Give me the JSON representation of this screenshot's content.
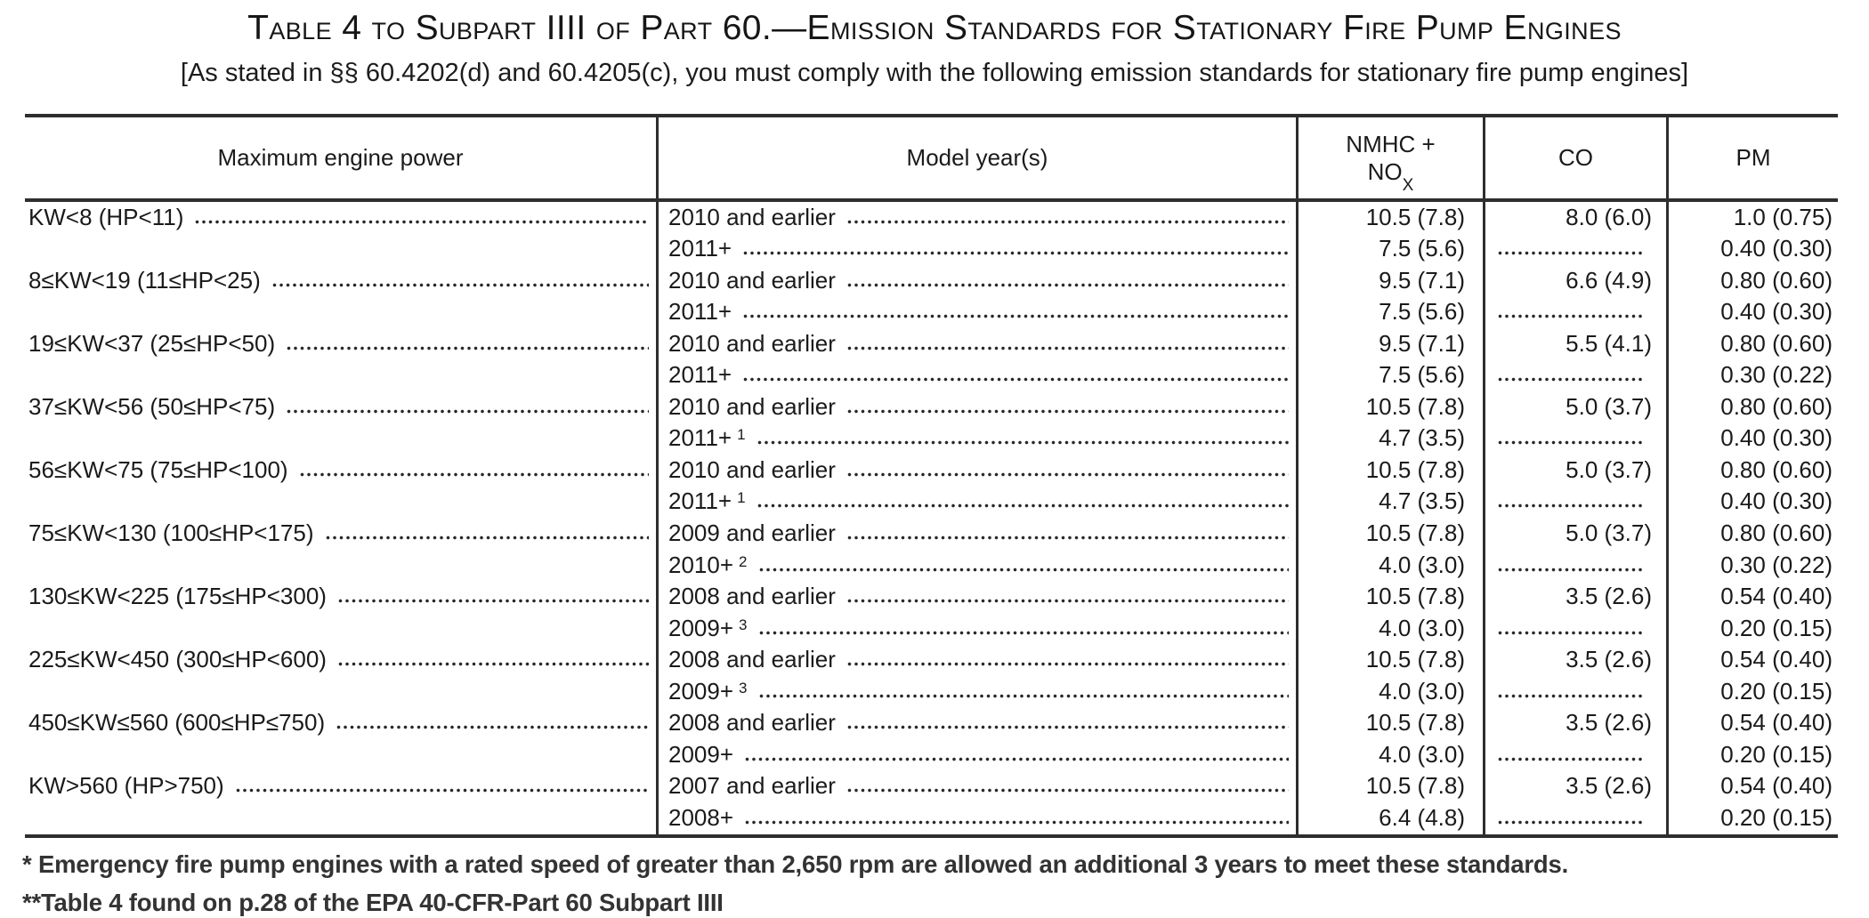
{
  "title": "Table 4 to Subpart IIII of Part 60.—Emission Standards for Stationary Fire Pump Engines",
  "subtitle": "[As stated in §§ 60.4202(d) and 60.4205(c), you must comply with the following emission standards for stationary fire pump engines]",
  "header": {
    "power": "Maximum engine power",
    "model_year": "Model year(s)",
    "nmhc_line1": "NMHC +",
    "nmhc_base": "NO",
    "nmhc_sub": "X",
    "co": "CO",
    "pm": "PM"
  },
  "rows": [
    {
      "power": "KW<8 (HP<11)",
      "entries": [
        {
          "year": "2010 and earlier",
          "sup": "",
          "nmhc": "10.5 (7.8)",
          "co": "8.0 (6.0)",
          "pm": "1.0 (0.75)"
        },
        {
          "year": "2011+",
          "sup": "",
          "nmhc": "7.5 (5.6)",
          "co": "",
          "pm": "0.40 (0.30)"
        }
      ]
    },
    {
      "power": "8≤KW<19 (11≤HP<25)",
      "entries": [
        {
          "year": "2010 and earlier",
          "sup": "",
          "nmhc": "9.5 (7.1)",
          "co": "6.6 (4.9)",
          "pm": "0.80 (0.60)"
        },
        {
          "year": "2011+",
          "sup": "",
          "nmhc": "7.5 (5.6)",
          "co": "",
          "pm": "0.40 (0.30)"
        }
      ]
    },
    {
      "power": "19≤KW<37 (25≤HP<50)",
      "entries": [
        {
          "year": "2010 and earlier",
          "sup": "",
          "nmhc": "9.5 (7.1)",
          "co": "5.5 (4.1)",
          "pm": "0.80 (0.60)"
        },
        {
          "year": "2011+",
          "sup": "",
          "nmhc": "7.5 (5.6)",
          "co": "",
          "pm": "0.30 (0.22)"
        }
      ]
    },
    {
      "power": "37≤KW<56 (50≤HP<75)",
      "entries": [
        {
          "year": "2010 and earlier",
          "sup": "",
          "nmhc": "10.5 (7.8)",
          "co": "5.0 (3.7)",
          "pm": "0.80 (0.60)"
        },
        {
          "year": "2011+",
          "sup": "1",
          "nmhc": "4.7 (3.5)",
          "co": "",
          "pm": "0.40 (0.30)"
        }
      ]
    },
    {
      "power": "56≤KW<75 (75≤HP<100)",
      "entries": [
        {
          "year": "2010 and earlier",
          "sup": "",
          "nmhc": "10.5 (7.8)",
          "co": "5.0 (3.7)",
          "pm": "0.80 (0.60)"
        },
        {
          "year": "2011+",
          "sup": "1",
          "nmhc": "4.7 (3.5)",
          "co": "",
          "pm": "0.40 (0.30)"
        }
      ]
    },
    {
      "power": "75≤KW<130 (100≤HP<175)",
      "entries": [
        {
          "year": "2009 and earlier",
          "sup": "",
          "nmhc": "10.5 (7.8)",
          "co": "5.0 (3.7)",
          "pm": "0.80 (0.60)"
        },
        {
          "year": "2010+",
          "sup": "2",
          "nmhc": "4.0 (3.0)",
          "co": "",
          "pm": "0.30 (0.22)"
        }
      ]
    },
    {
      "power": "130≤KW<225 (175≤HP<300)",
      "entries": [
        {
          "year": "2008 and earlier",
          "sup": "",
          "nmhc": "10.5 (7.8)",
          "co": "3.5 (2.6)",
          "pm": "0.54 (0.40)"
        },
        {
          "year": "2009+",
          "sup": "3",
          "nmhc": "4.0 (3.0)",
          "co": "",
          "pm": "0.20 (0.15)"
        }
      ]
    },
    {
      "power": "225≤KW<450 (300≤HP<600)",
      "entries": [
        {
          "year": "2008 and earlier",
          "sup": "",
          "nmhc": "10.5 (7.8)",
          "co": "3.5 (2.6)",
          "pm": "0.54 (0.40)"
        },
        {
          "year": "2009+",
          "sup": "3",
          "nmhc": "4.0 (3.0)",
          "co": "",
          "pm": "0.20 (0.15)"
        }
      ]
    },
    {
      "power": "450≤KW≤560 (600≤HP≤750)",
      "entries": [
        {
          "year": "2008 and earlier",
          "sup": "",
          "nmhc": "10.5 (7.8)",
          "co": "3.5 (2.6)",
          "pm": "0.54 (0.40)"
        },
        {
          "year": "2009+",
          "sup": "",
          "nmhc": "4.0 (3.0)",
          "co": "",
          "pm": "0.20 (0.15)"
        }
      ]
    },
    {
      "power": "KW>560 (HP>750)",
      "entries": [
        {
          "year": "2007 and earlier",
          "sup": "",
          "nmhc": "10.5 (7.8)",
          "co": "3.5 (2.6)",
          "pm": "0.54 (0.40)"
        },
        {
          "year": "2008+",
          "sup": "",
          "nmhc": "6.4 (4.8)",
          "co": "",
          "pm": "0.20 (0.15)"
        }
      ]
    }
  ],
  "footnotes": [
    "* Emergency fire pump engines with a rated speed of greater than 2,650 rpm are allowed an additional 3 years to meet these standards.",
    "**Table 4 found on p.28 of the EPA 40-CFR-Part 60 Subpart IIII"
  ],
  "colors": {
    "text": "#1a1a1a",
    "rule": "#2e2e2e",
    "footnote": "#333333"
  }
}
